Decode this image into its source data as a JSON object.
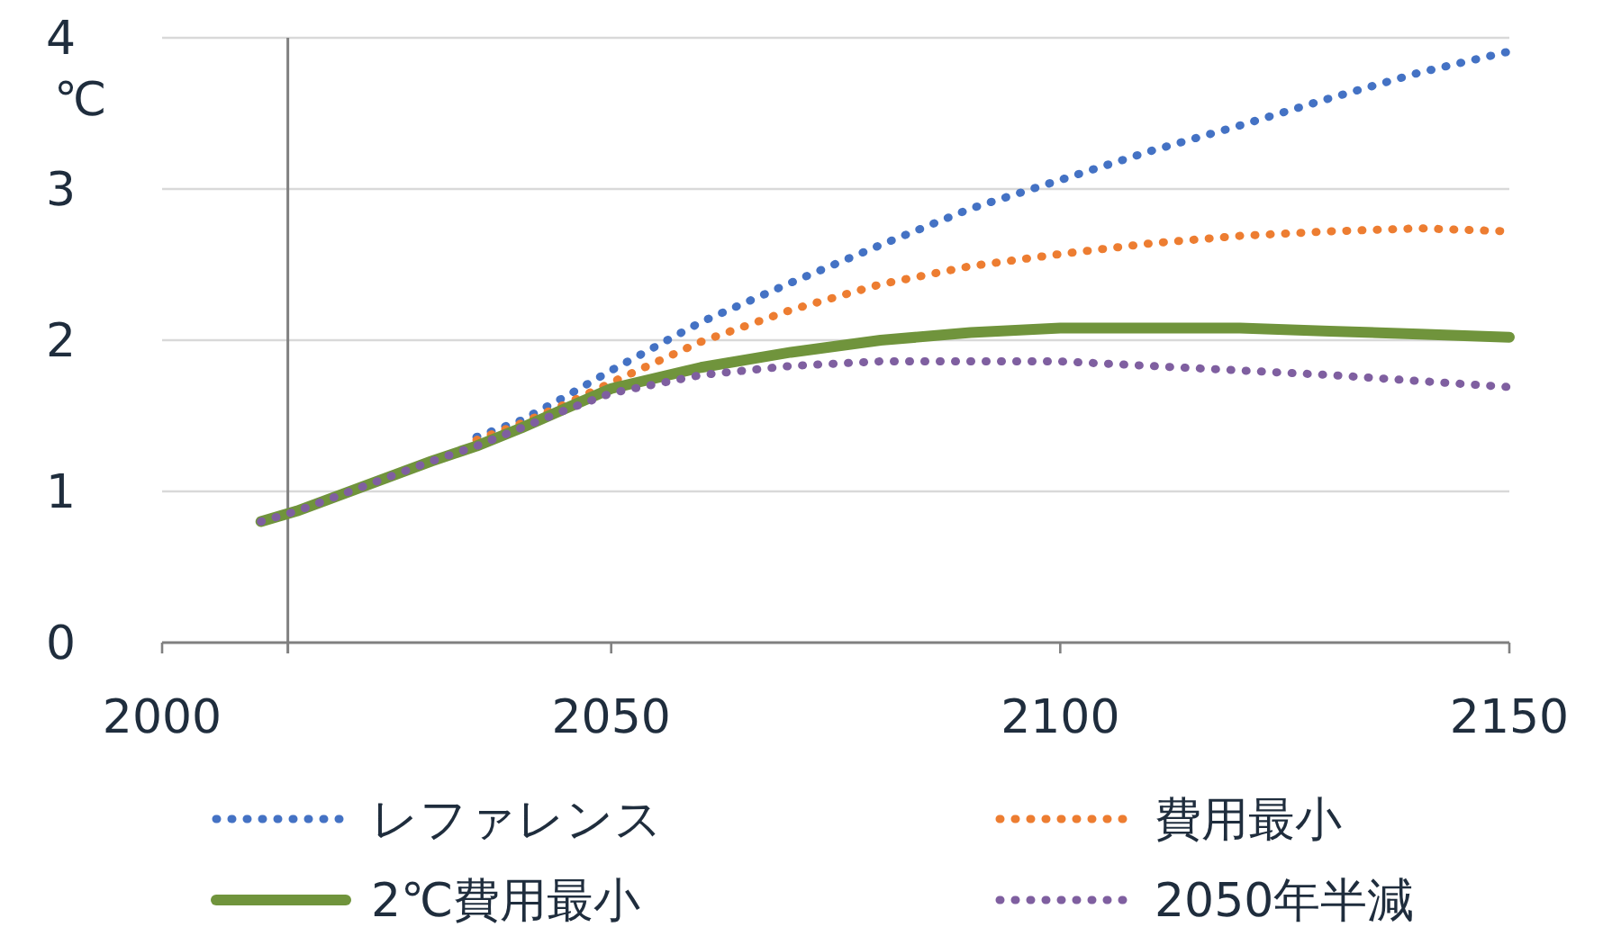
{
  "chart_data": {
    "type": "line",
    "ylabel": "℃",
    "x": [
      2011,
      2015,
      2020,
      2025,
      2030,
      2035,
      2040,
      2045,
      2050,
      2060,
      2070,
      2080,
      2090,
      2100,
      2110,
      2120,
      2130,
      2140,
      2150
    ],
    "series": [
      {
        "name": "レファレンス",
        "color": "#4472c4",
        "line_style": "dotted",
        "values": [
          null,
          null,
          null,
          null,
          null,
          1.36,
          1.47,
          1.63,
          1.8,
          2.12,
          2.38,
          2.63,
          2.87,
          3.06,
          3.25,
          3.42,
          3.6,
          3.77,
          3.91
        ]
      },
      {
        "name": "費用最小",
        "color": "#ed7d31",
        "line_style": "dotted",
        "values": [
          null,
          null,
          null,
          null,
          null,
          1.34,
          1.45,
          1.58,
          1.72,
          1.99,
          2.2,
          2.37,
          2.49,
          2.57,
          2.64,
          2.69,
          2.72,
          2.74,
          2.72
        ]
      },
      {
        "name": "2℃費用最小",
        "color": "#70943c",
        "line_style": "solid",
        "values": [
          0.8,
          0.87,
          0.98,
          1.09,
          1.2,
          1.3,
          1.42,
          1.55,
          1.68,
          1.82,
          1.92,
          2.0,
          2.05,
          2.08,
          2.08,
          2.08,
          2.06,
          2.04,
          2.02
        ]
      },
      {
        "name": "2050年半減",
        "color": "#7f5fa0",
        "line_style": "dotted",
        "values": [
          0.8,
          0.87,
          0.98,
          1.09,
          1.2,
          1.3,
          1.42,
          1.54,
          1.65,
          1.77,
          1.83,
          1.86,
          1.86,
          1.86,
          1.83,
          1.8,
          1.77,
          1.73,
          1.69
        ]
      }
    ],
    "xlim": [
      2000,
      2150
    ],
    "xticks": [
      2000,
      2050,
      2100,
      2150
    ],
    "ylim": [
      0,
      4
    ],
    "yticks": [
      0,
      1,
      2,
      3,
      4
    ],
    "grid": "y",
    "legend": "bottom",
    "ref_lines": [
      {
        "axis": "x",
        "value": 2014,
        "color": "#808080"
      }
    ]
  }
}
